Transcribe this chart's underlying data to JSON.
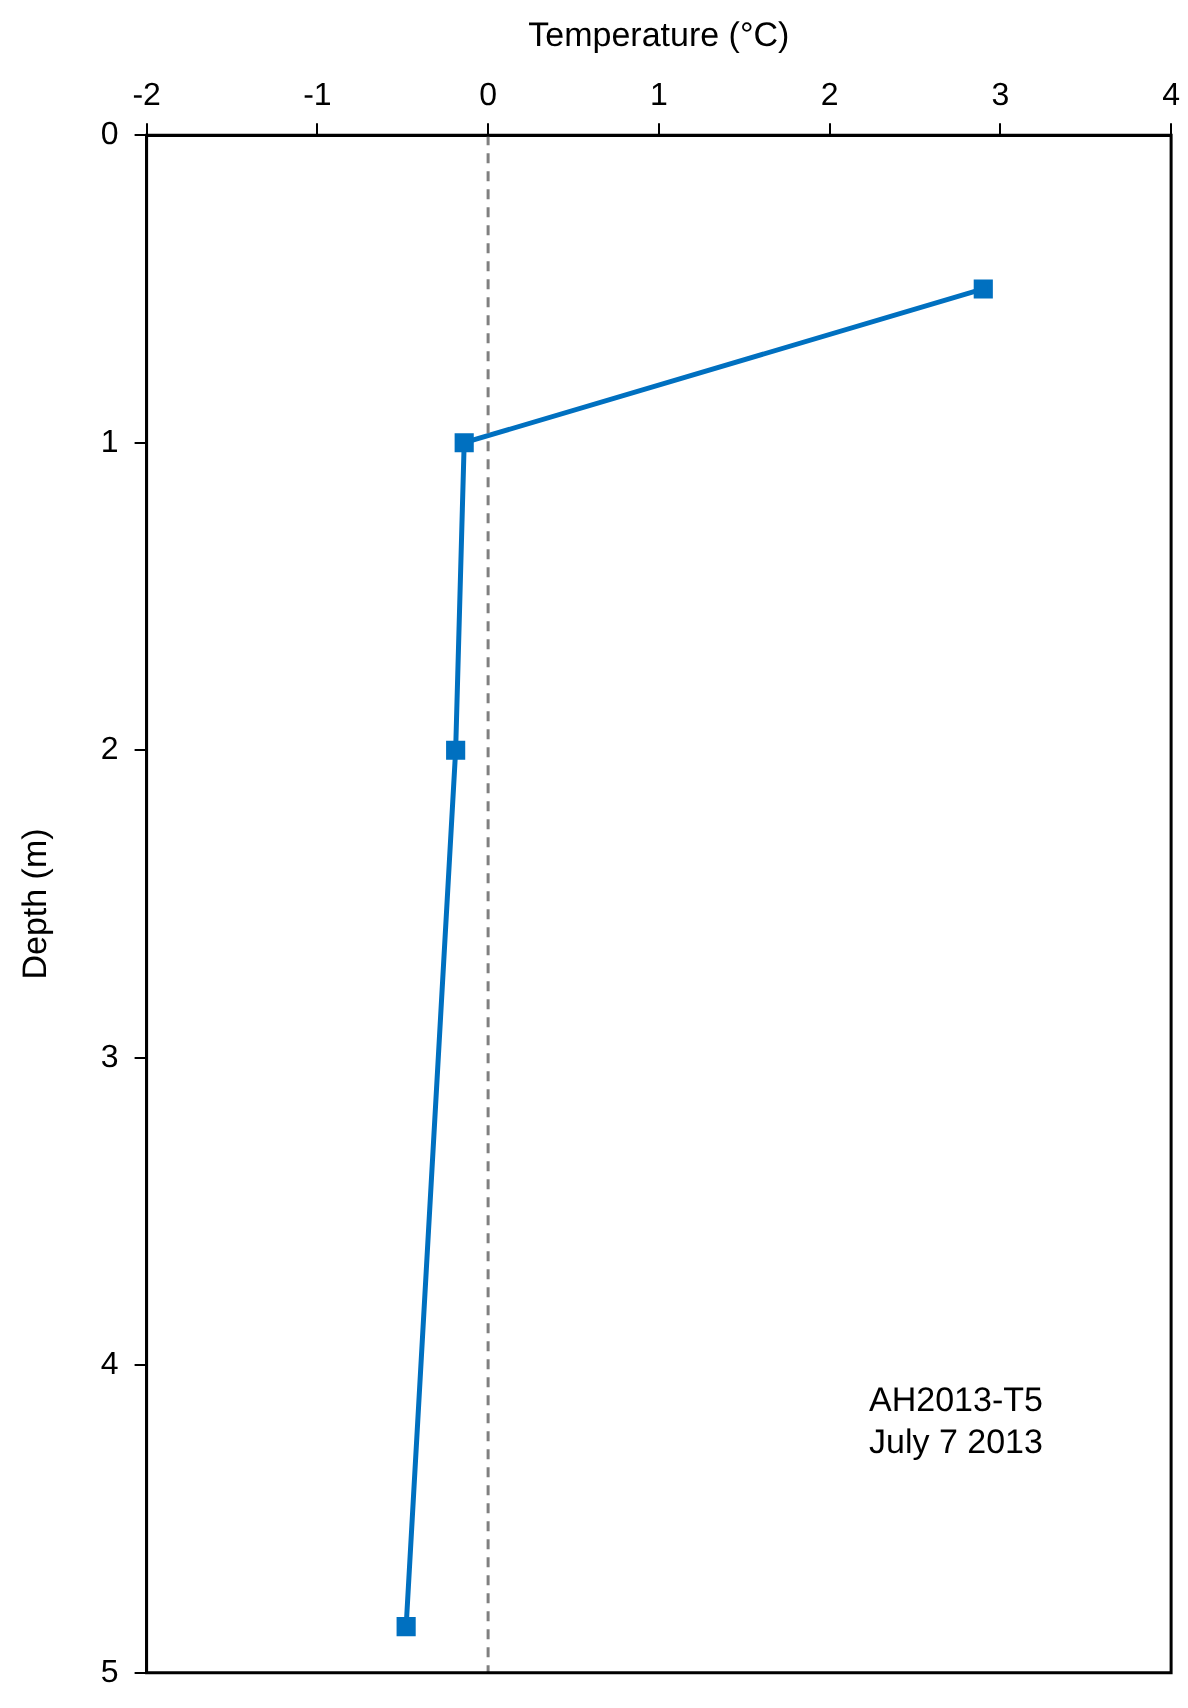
{
  "chart_data": {
    "type": "line",
    "xlabel": "Temperature (°C)",
    "ylabel": "Depth (m)",
    "series": [
      {
        "color": "#0070c0",
        "x": [
          2.9,
          -0.14,
          -0.19,
          -0.48
        ],
        "values": [
          0.5,
          1,
          2,
          4.85
        ]
      }
    ],
    "xlim": [
      -2,
      4
    ],
    "xticks": [
      -2,
      -1,
      0,
      1,
      2,
      3,
      4
    ],
    "ylim": [
      5,
      0
    ],
    "yticks": [
      0,
      1,
      2,
      3,
      4,
      5
    ],
    "ref_lines": [
      {
        "axis": "x",
        "value": 0,
        "color": "#808080",
        "line_style": "dashed"
      }
    ],
    "annotations": [
      "AH2013-T5",
      "July 7 2013"
    ],
    "grid": false,
    "legend": false,
    "marker": "square",
    "line_style": "solid"
  }
}
